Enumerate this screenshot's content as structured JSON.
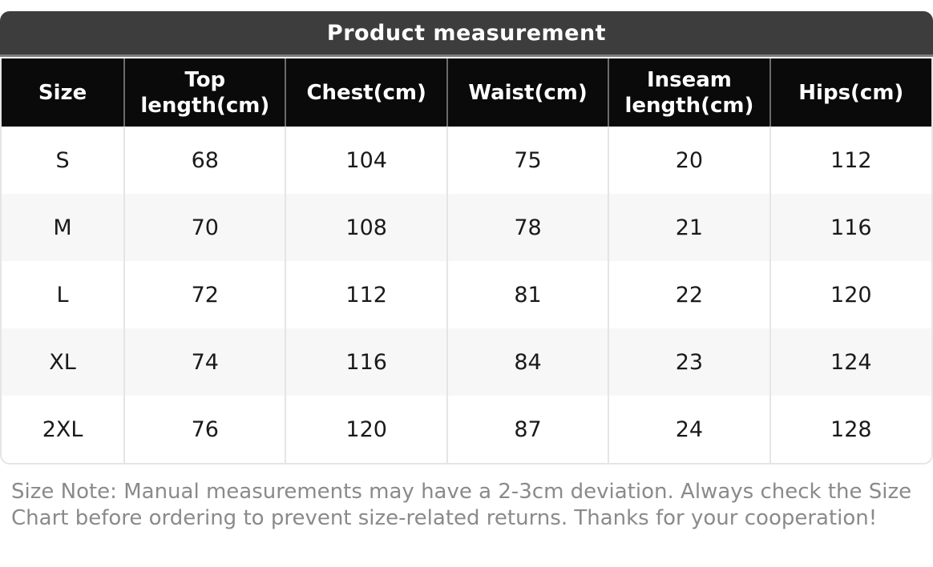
{
  "table": {
    "title": "Product measurement",
    "columns": [
      "Size",
      "Top length(cm)",
      "Chest(cm)",
      "Waist(cm)",
      "Inseam length(cm)",
      "Hips(cm)"
    ],
    "rows": [
      [
        "S",
        "68",
        "104",
        "75",
        "20",
        "112"
      ],
      [
        "M",
        "70",
        "108",
        "78",
        "21",
        "116"
      ],
      [
        "L",
        "72",
        "112",
        "81",
        "22",
        "120"
      ],
      [
        "XL",
        "74",
        "116",
        "84",
        "23",
        "124"
      ],
      [
        "2XL",
        "76",
        "120",
        "87",
        "24",
        "128"
      ]
    ]
  },
  "note": {
    "text": "Size Note: Manual measurements may have a 2-3cm deviation. Always check the Size Chart before ordering to prevent size-related returns. Thanks for your cooperation!"
  },
  "colors": {
    "title_bar": "#3d3d3d",
    "title_bar_border": "#7d7d7d",
    "header_bg": "#0a0a0a",
    "header_divider": "#6b6b6b",
    "body_divider": "#e5e5e5",
    "row_alt": "#f7f7f7",
    "note_text": "#8a8a8a"
  }
}
